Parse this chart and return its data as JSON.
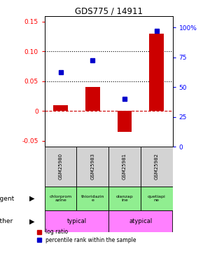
{
  "title": "GDS775 / 14911",
  "samples": [
    "GSM25980",
    "GSM25983",
    "GSM25981",
    "GSM25982"
  ],
  "log_ratios": [
    0.01,
    0.04,
    -0.035,
    0.13
  ],
  "percentile_ranks": [
    0.065,
    0.085,
    0.02,
    0.135
  ],
  "agent_labels": [
    "chlorprom\nazine",
    "thioridazin\ne",
    "olanzap\nine",
    "quetiapi\nne"
  ],
  "agent_color": "#90EE90",
  "other_color": "#FF80FF",
  "bar_color": "#CC0000",
  "dot_color": "#0000CC",
  "ylim_left": [
    -0.06,
    0.16
  ],
  "ylim_right": [
    0,
    110
  ],
  "yticks_left": [
    -0.05,
    0.0,
    0.05,
    0.1,
    0.15
  ],
  "ytick_labels_left": [
    "-0.05",
    "0",
    "0.05",
    "0.10",
    "0.15"
  ],
  "yticks_right": [
    0,
    25,
    50,
    75,
    100
  ],
  "ytick_labels_right": [
    "0",
    "25",
    "50",
    "75",
    "100%"
  ],
  "hlines": [
    0.05,
    0.1
  ],
  "bg_color": "#ffffff",
  "sample_bg": "#d3d3d3",
  "legend_labels": [
    "log ratio",
    "percentile rank within the sample"
  ]
}
